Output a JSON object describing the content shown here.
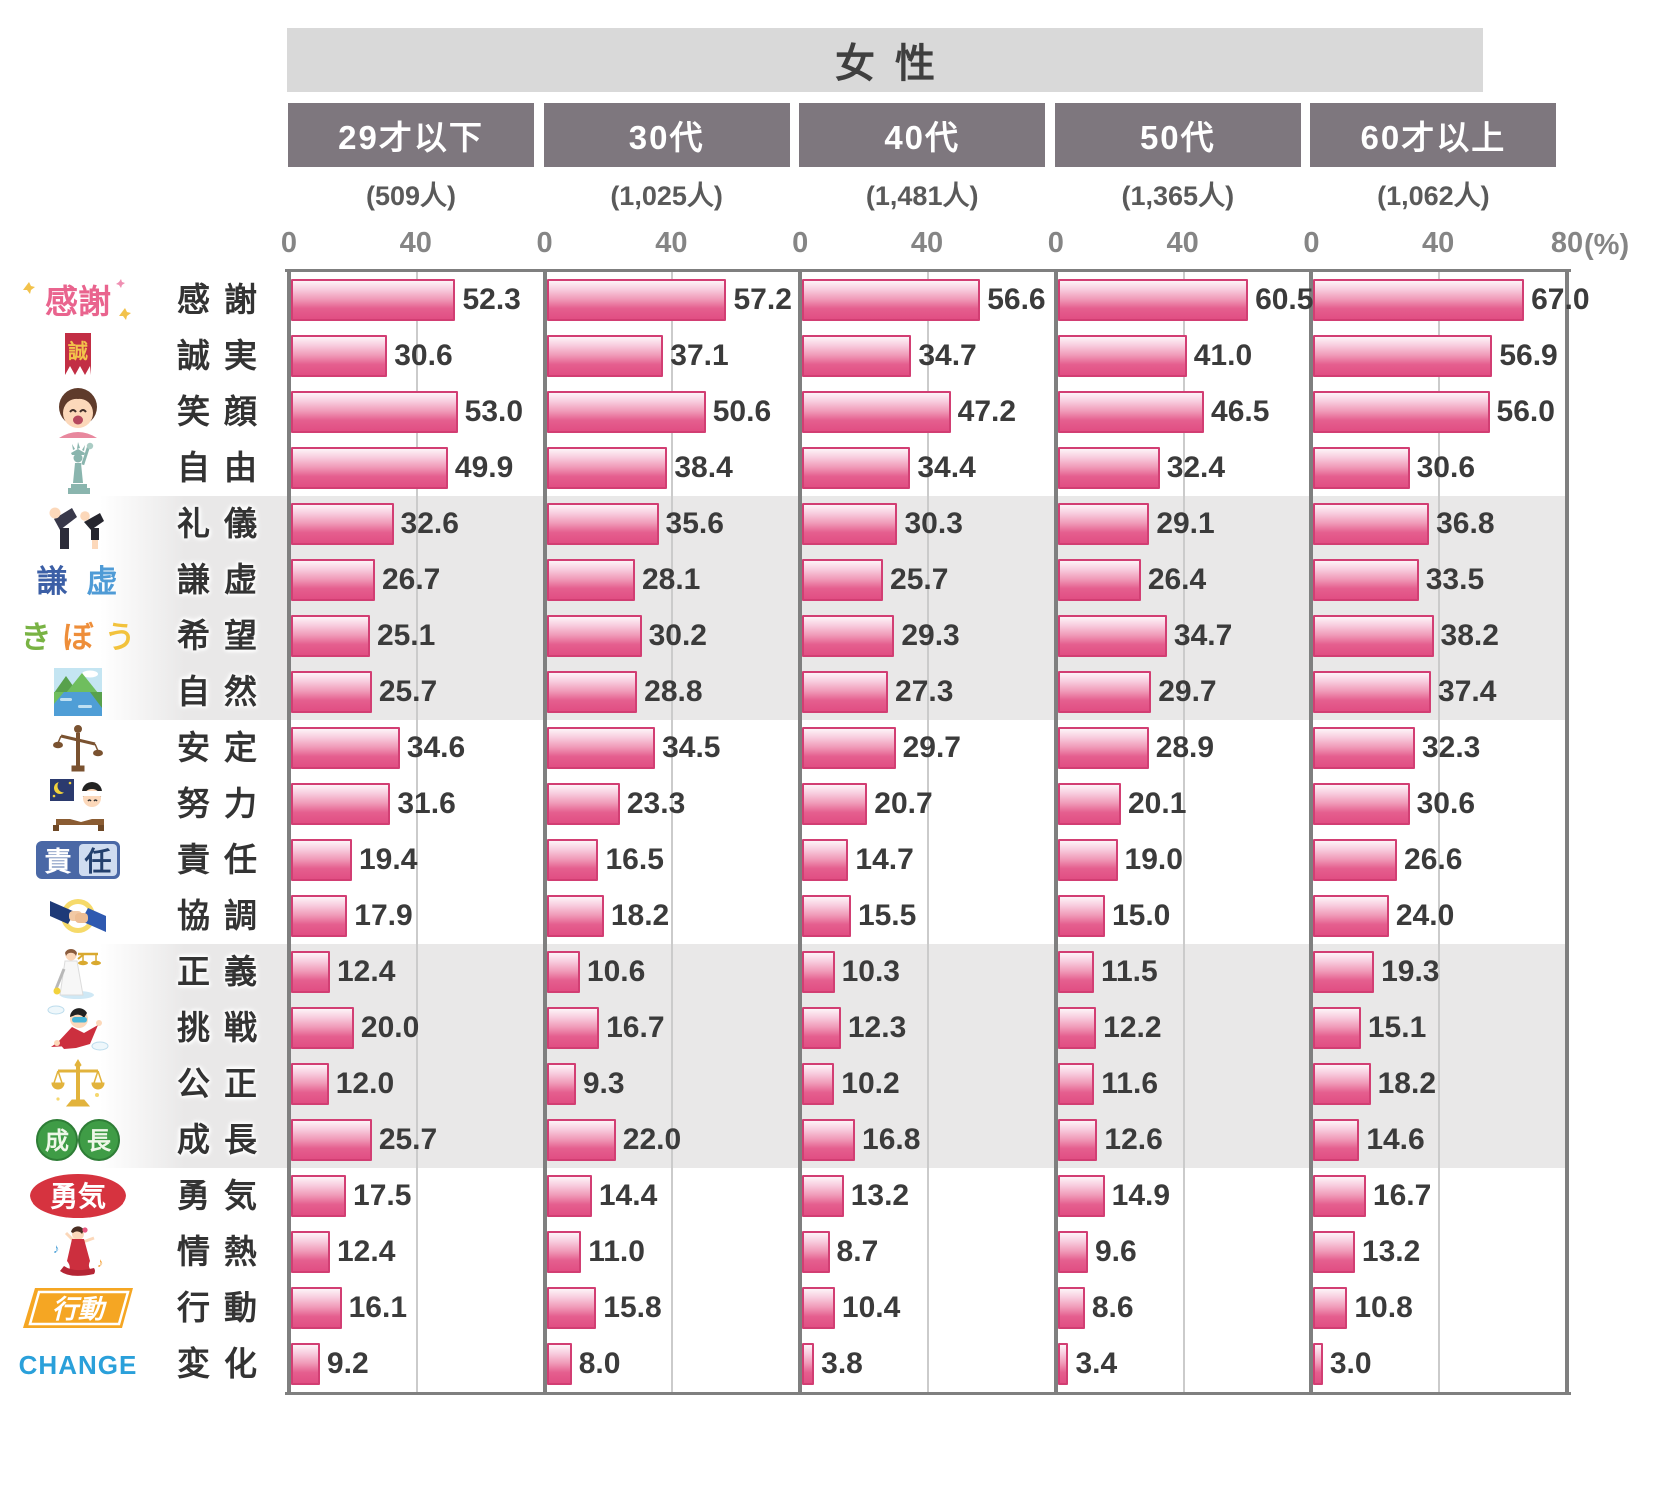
{
  "chart_data": {
    "type": "bar",
    "orientation": "horizontal",
    "title": "女性",
    "unit_display": "(%)",
    "xlim": [
      0,
      80
    ],
    "axis_ticks": [
      "0",
      "40",
      "80"
    ],
    "panel_tick_labels": [
      "0",
      "40"
    ],
    "grid": "vertical gridline at 40 in each panel",
    "legend_position": "none",
    "striped_row_groups": [
      [
        4,
        7
      ],
      [
        12,
        15
      ]
    ],
    "categories": [
      "感謝",
      "誠実",
      "笑顔",
      "自由",
      "礼儀",
      "謙虚",
      "希望",
      "自然",
      "安定",
      "努力",
      "責任",
      "協調",
      "正義",
      "挑戦",
      "公正",
      "成長",
      "勇気",
      "情熱",
      "行動",
      "変化"
    ],
    "series": [
      {
        "name": "29才以下",
        "count_display": "(509人)",
        "values": [
          "52.3",
          "30.6",
          "53.0",
          "49.9",
          "32.6",
          "26.7",
          "25.1",
          "25.7",
          "34.6",
          "31.6",
          "19.4",
          "17.9",
          "12.4",
          "20.0",
          "12.0",
          "25.7",
          "17.5",
          "12.4",
          "16.1",
          "9.2"
        ]
      },
      {
        "name": "30代",
        "count_display": "(1,025人)",
        "values": [
          "57.2",
          "37.1",
          "50.6",
          "38.4",
          "35.6",
          "28.1",
          "30.2",
          "28.8",
          "34.5",
          "23.3",
          "16.5",
          "18.2",
          "10.6",
          "16.7",
          "9.3",
          "22.0",
          "14.4",
          "11.0",
          "15.8",
          "8.0"
        ]
      },
      {
        "name": "40代",
        "count_display": "(1,481人)",
        "values": [
          "56.6",
          "34.7",
          "47.2",
          "34.4",
          "30.3",
          "25.7",
          "29.3",
          "27.3",
          "29.7",
          "20.7",
          "14.7",
          "15.5",
          "10.3",
          "12.3",
          "10.2",
          "16.8",
          "13.2",
          "8.7",
          "10.4",
          "3.8"
        ]
      },
      {
        "name": "50代",
        "count_display": "(1,365人)",
        "values": [
          "60.5",
          "41.0",
          "46.5",
          "32.4",
          "29.1",
          "26.4",
          "34.7",
          "29.7",
          "28.9",
          "20.1",
          "19.0",
          "15.0",
          "11.5",
          "12.2",
          "11.6",
          "12.6",
          "14.9",
          "9.6",
          "8.6",
          "3.4"
        ]
      },
      {
        "name": "60才以上",
        "count_display": "(1,062人)",
        "values": [
          "67.0",
          "56.9",
          "56.0",
          "30.6",
          "36.8",
          "33.5",
          "38.2",
          "37.4",
          "32.3",
          "30.6",
          "26.6",
          "24.0",
          "19.3",
          "15.1",
          "18.2",
          "14.6",
          "16.7",
          "13.2",
          "10.8",
          "3.0"
        ]
      }
    ],
    "row_icons": [
      {
        "name": "kansha-text-icon",
        "glyph": "感謝"
      },
      {
        "name": "makoto-banner-icon",
        "glyph": "誠"
      },
      {
        "name": "smiling-woman-icon",
        "glyph": ""
      },
      {
        "name": "statue-of-liberty-icon",
        "glyph": ""
      },
      {
        "name": "bowing-people-icon",
        "glyph": ""
      },
      {
        "name": "kenkyo-text-icon",
        "glyph": "謙虚"
      },
      {
        "name": "kibou-text-icon",
        "glyph": "きぼう"
      },
      {
        "name": "nature-landscape-icon",
        "glyph": ""
      },
      {
        "name": "wooden-balance-icon",
        "glyph": ""
      },
      {
        "name": "studying-boy-icon",
        "glyph": ""
      },
      {
        "name": "sekinin-badge-icon",
        "glyph": "責任"
      },
      {
        "name": "handshake-icon",
        "glyph": ""
      },
      {
        "name": "lady-justice-icon",
        "glyph": ""
      },
      {
        "name": "skydiver-icon",
        "glyph": ""
      },
      {
        "name": "golden-scales-icon",
        "glyph": ""
      },
      {
        "name": "seichou-circles-icon",
        "glyph": "成長"
      },
      {
        "name": "yuuki-oval-icon",
        "glyph": "勇気"
      },
      {
        "name": "flamenco-dancer-icon",
        "glyph": ""
      },
      {
        "name": "koudou-plate-icon",
        "glyph": "行動"
      },
      {
        "name": "change-text-icon",
        "glyph": "CHANGE"
      }
    ],
    "colors": {
      "bar_fill_top": "#fdf4f8",
      "bar_fill_mid": "#f09ab8",
      "bar_fill_bottom": "#e14e83",
      "bar_border": "#d23e73",
      "title_band_bg": "#d9d9d9",
      "title_text": "#3f3f3f",
      "age_band_bg": "#7e777e",
      "age_band_text": "#ffffff",
      "count_text": "#5a5a5a",
      "tick_text": "#858585",
      "value_text": "#3b3b3b",
      "row_label_text": "#333333",
      "panel_border": "#7f7f7f",
      "gridline": "#cbcbcb",
      "stripe_bg": "#e9e8e8"
    }
  }
}
